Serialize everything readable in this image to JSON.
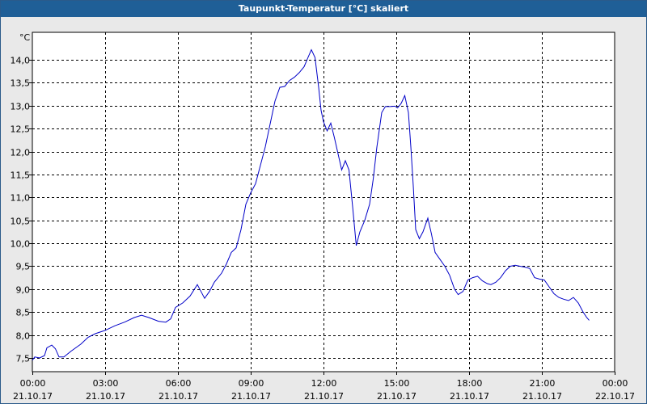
{
  "chart_data": {
    "type": "line",
    "title": "Taupunkt-Temperatur [°C] skaliert",
    "ylabel": "°C",
    "ylim": [
      7.2,
      14.6
    ],
    "grid": true,
    "line_color": "#0000c8",
    "background_color": "#ffffff",
    "title_bar_color": "#1f5f97",
    "y_ticks": [
      {
        "value": 7.5,
        "label": "7,5"
      },
      {
        "value": 8.0,
        "label": "8,0"
      },
      {
        "value": 8.5,
        "label": "8,5"
      },
      {
        "value": 9.0,
        "label": "9,0"
      },
      {
        "value": 9.5,
        "label": "9,5"
      },
      {
        "value": 10.0,
        "label": "10,0"
      },
      {
        "value": 10.5,
        "label": "10,5"
      },
      {
        "value": 11.0,
        "label": "11,0"
      },
      {
        "value": 11.5,
        "label": "11,5"
      },
      {
        "value": 12.0,
        "label": "12,0"
      },
      {
        "value": 12.5,
        "label": "12,5"
      },
      {
        "value": 13.0,
        "label": "13,0"
      },
      {
        "value": 13.5,
        "label": "13,5"
      },
      {
        "value": 14.0,
        "label": "14,0"
      }
    ],
    "x_ticks": [
      {
        "time": "00:00",
        "date": "21.10.17"
      },
      {
        "time": "03:00",
        "date": "21.10.17"
      },
      {
        "time": "06:00",
        "date": "21.10.17"
      },
      {
        "time": "09:00",
        "date": "21.10.17"
      },
      {
        "time": "12:00",
        "date": "21.10.17"
      },
      {
        "time": "15:00",
        "date": "21.10.17"
      },
      {
        "time": "18:00",
        "date": "21.10.17"
      },
      {
        "time": "21:00",
        "date": "21.10.17"
      },
      {
        "time": "00:00",
        "date": "22.10.17"
      }
    ],
    "xlim_hours": [
      0,
      24
    ],
    "series": [
      {
        "points": [
          [
            0.0,
            7.45
          ],
          [
            0.1,
            7.52
          ],
          [
            0.3,
            7.5
          ],
          [
            0.5,
            7.55
          ],
          [
            0.6,
            7.72
          ],
          [
            0.8,
            7.78
          ],
          [
            0.95,
            7.7
          ],
          [
            1.1,
            7.52
          ],
          [
            1.3,
            7.52
          ],
          [
            1.6,
            7.65
          ],
          [
            2.0,
            7.8
          ],
          [
            2.3,
            7.95
          ],
          [
            2.6,
            8.03
          ],
          [
            3.0,
            8.1
          ],
          [
            3.4,
            8.2
          ],
          [
            3.8,
            8.28
          ],
          [
            4.2,
            8.38
          ],
          [
            4.5,
            8.43
          ],
          [
            4.8,
            8.38
          ],
          [
            5.2,
            8.3
          ],
          [
            5.5,
            8.28
          ],
          [
            5.7,
            8.35
          ],
          [
            5.9,
            8.6
          ],
          [
            6.2,
            8.7
          ],
          [
            6.5,
            8.85
          ],
          [
            6.8,
            9.1
          ],
          [
            7.1,
            8.8
          ],
          [
            7.3,
            8.95
          ],
          [
            7.5,
            9.15
          ],
          [
            7.8,
            9.35
          ],
          [
            8.0,
            9.55
          ],
          [
            8.2,
            9.8
          ],
          [
            8.4,
            9.9
          ],
          [
            8.6,
            10.3
          ],
          [
            8.8,
            10.85
          ],
          [
            9.0,
            11.1
          ],
          [
            9.2,
            11.3
          ],
          [
            9.4,
            11.7
          ],
          [
            9.6,
            12.1
          ],
          [
            9.8,
            12.6
          ],
          [
            10.0,
            13.1
          ],
          [
            10.2,
            13.4
          ],
          [
            10.4,
            13.42
          ],
          [
            10.6,
            13.55
          ],
          [
            10.8,
            13.62
          ],
          [
            11.0,
            13.72
          ],
          [
            11.2,
            13.85
          ],
          [
            11.4,
            14.1
          ],
          [
            11.5,
            14.22
          ],
          [
            11.65,
            14.05
          ],
          [
            11.8,
            13.4
          ],
          [
            11.9,
            12.9
          ],
          [
            12.0,
            12.65
          ],
          [
            12.15,
            12.45
          ],
          [
            12.3,
            12.62
          ],
          [
            12.45,
            12.3
          ],
          [
            12.6,
            11.95
          ],
          [
            12.75,
            11.6
          ],
          [
            12.9,
            11.8
          ],
          [
            13.05,
            11.6
          ],
          [
            13.2,
            10.8
          ],
          [
            13.35,
            9.95
          ],
          [
            13.5,
            10.25
          ],
          [
            13.7,
            10.5
          ],
          [
            13.9,
            10.85
          ],
          [
            14.05,
            11.4
          ],
          [
            14.2,
            12.1
          ],
          [
            14.4,
            12.85
          ],
          [
            14.55,
            12.98
          ],
          [
            14.75,
            12.98
          ],
          [
            14.95,
            12.99
          ],
          [
            15.05,
            12.95
          ],
          [
            15.2,
            13.05
          ],
          [
            15.35,
            13.22
          ],
          [
            15.5,
            12.85
          ],
          [
            15.6,
            12.1
          ],
          [
            15.7,
            11.25
          ],
          [
            15.8,
            10.3
          ],
          [
            15.95,
            10.1
          ],
          [
            16.1,
            10.25
          ],
          [
            16.3,
            10.55
          ],
          [
            16.45,
            10.2
          ],
          [
            16.6,
            9.8
          ],
          [
            16.8,
            9.65
          ],
          [
            17.0,
            9.5
          ],
          [
            17.2,
            9.3
          ],
          [
            17.4,
            9.0
          ],
          [
            17.55,
            8.88
          ],
          [
            17.75,
            8.95
          ],
          [
            17.95,
            9.2
          ],
          [
            18.15,
            9.25
          ],
          [
            18.35,
            9.28
          ],
          [
            18.55,
            9.18
          ],
          [
            18.75,
            9.12
          ],
          [
            18.9,
            9.1
          ],
          [
            19.1,
            9.15
          ],
          [
            19.3,
            9.25
          ],
          [
            19.5,
            9.4
          ],
          [
            19.7,
            9.5
          ],
          [
            19.9,
            9.52
          ],
          [
            20.1,
            9.5
          ],
          [
            20.3,
            9.48
          ],
          [
            20.5,
            9.45
          ],
          [
            20.7,
            9.25
          ],
          [
            20.9,
            9.22
          ],
          [
            21.1,
            9.2
          ],
          [
            21.3,
            9.05
          ],
          [
            21.5,
            8.9
          ],
          [
            21.7,
            8.82
          ],
          [
            21.9,
            8.78
          ],
          [
            22.1,
            8.75
          ],
          [
            22.3,
            8.82
          ],
          [
            22.5,
            8.7
          ],
          [
            22.7,
            8.5
          ],
          [
            22.85,
            8.38
          ],
          [
            22.95,
            8.32
          ]
        ]
      }
    ]
  }
}
